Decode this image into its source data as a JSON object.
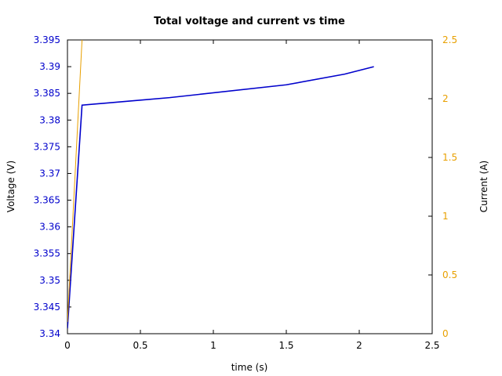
{
  "chart_data": {
    "type": "line",
    "title": "Total voltage and current vs time",
    "xlabel": "time (s)",
    "ylabel_left": "Voltage (V)",
    "ylabel_right": "Current (A)",
    "xlim": [
      0,
      2.5
    ],
    "ylim_left": [
      3.34,
      3.395
    ],
    "ylim_right": [
      0,
      2.5
    ],
    "x_ticks": [
      "0",
      "0.5",
      "1",
      "1.5",
      "2",
      "2.5"
    ],
    "y_ticks_left": [
      "3.34",
      "3.345",
      "3.35",
      "3.355",
      "3.36",
      "3.365",
      "3.37",
      "3.375",
      "3.38",
      "3.385",
      "3.39",
      "3.395"
    ],
    "y_ticks_right": [
      "0",
      "0.5",
      "1",
      "1.5",
      "2",
      "2.5"
    ],
    "grid": false,
    "series": [
      {
        "axis": "left",
        "color": "#0000cc",
        "x": [
          0,
          0.1,
          0.7,
          1.5,
          1.9,
          2.1
        ],
        "y": [
          3.341,
          3.3828,
          3.3842,
          3.3866,
          3.3886,
          3.39
        ]
      },
      {
        "axis": "right",
        "color": "#e8a000",
        "x": [
          0,
          0.1
        ],
        "y": [
          0.1,
          2.5
        ]
      }
    ],
    "colors": {
      "left_axis": "#0000cc",
      "right_axis": "#e8a000",
      "frame": "#000000"
    }
  }
}
